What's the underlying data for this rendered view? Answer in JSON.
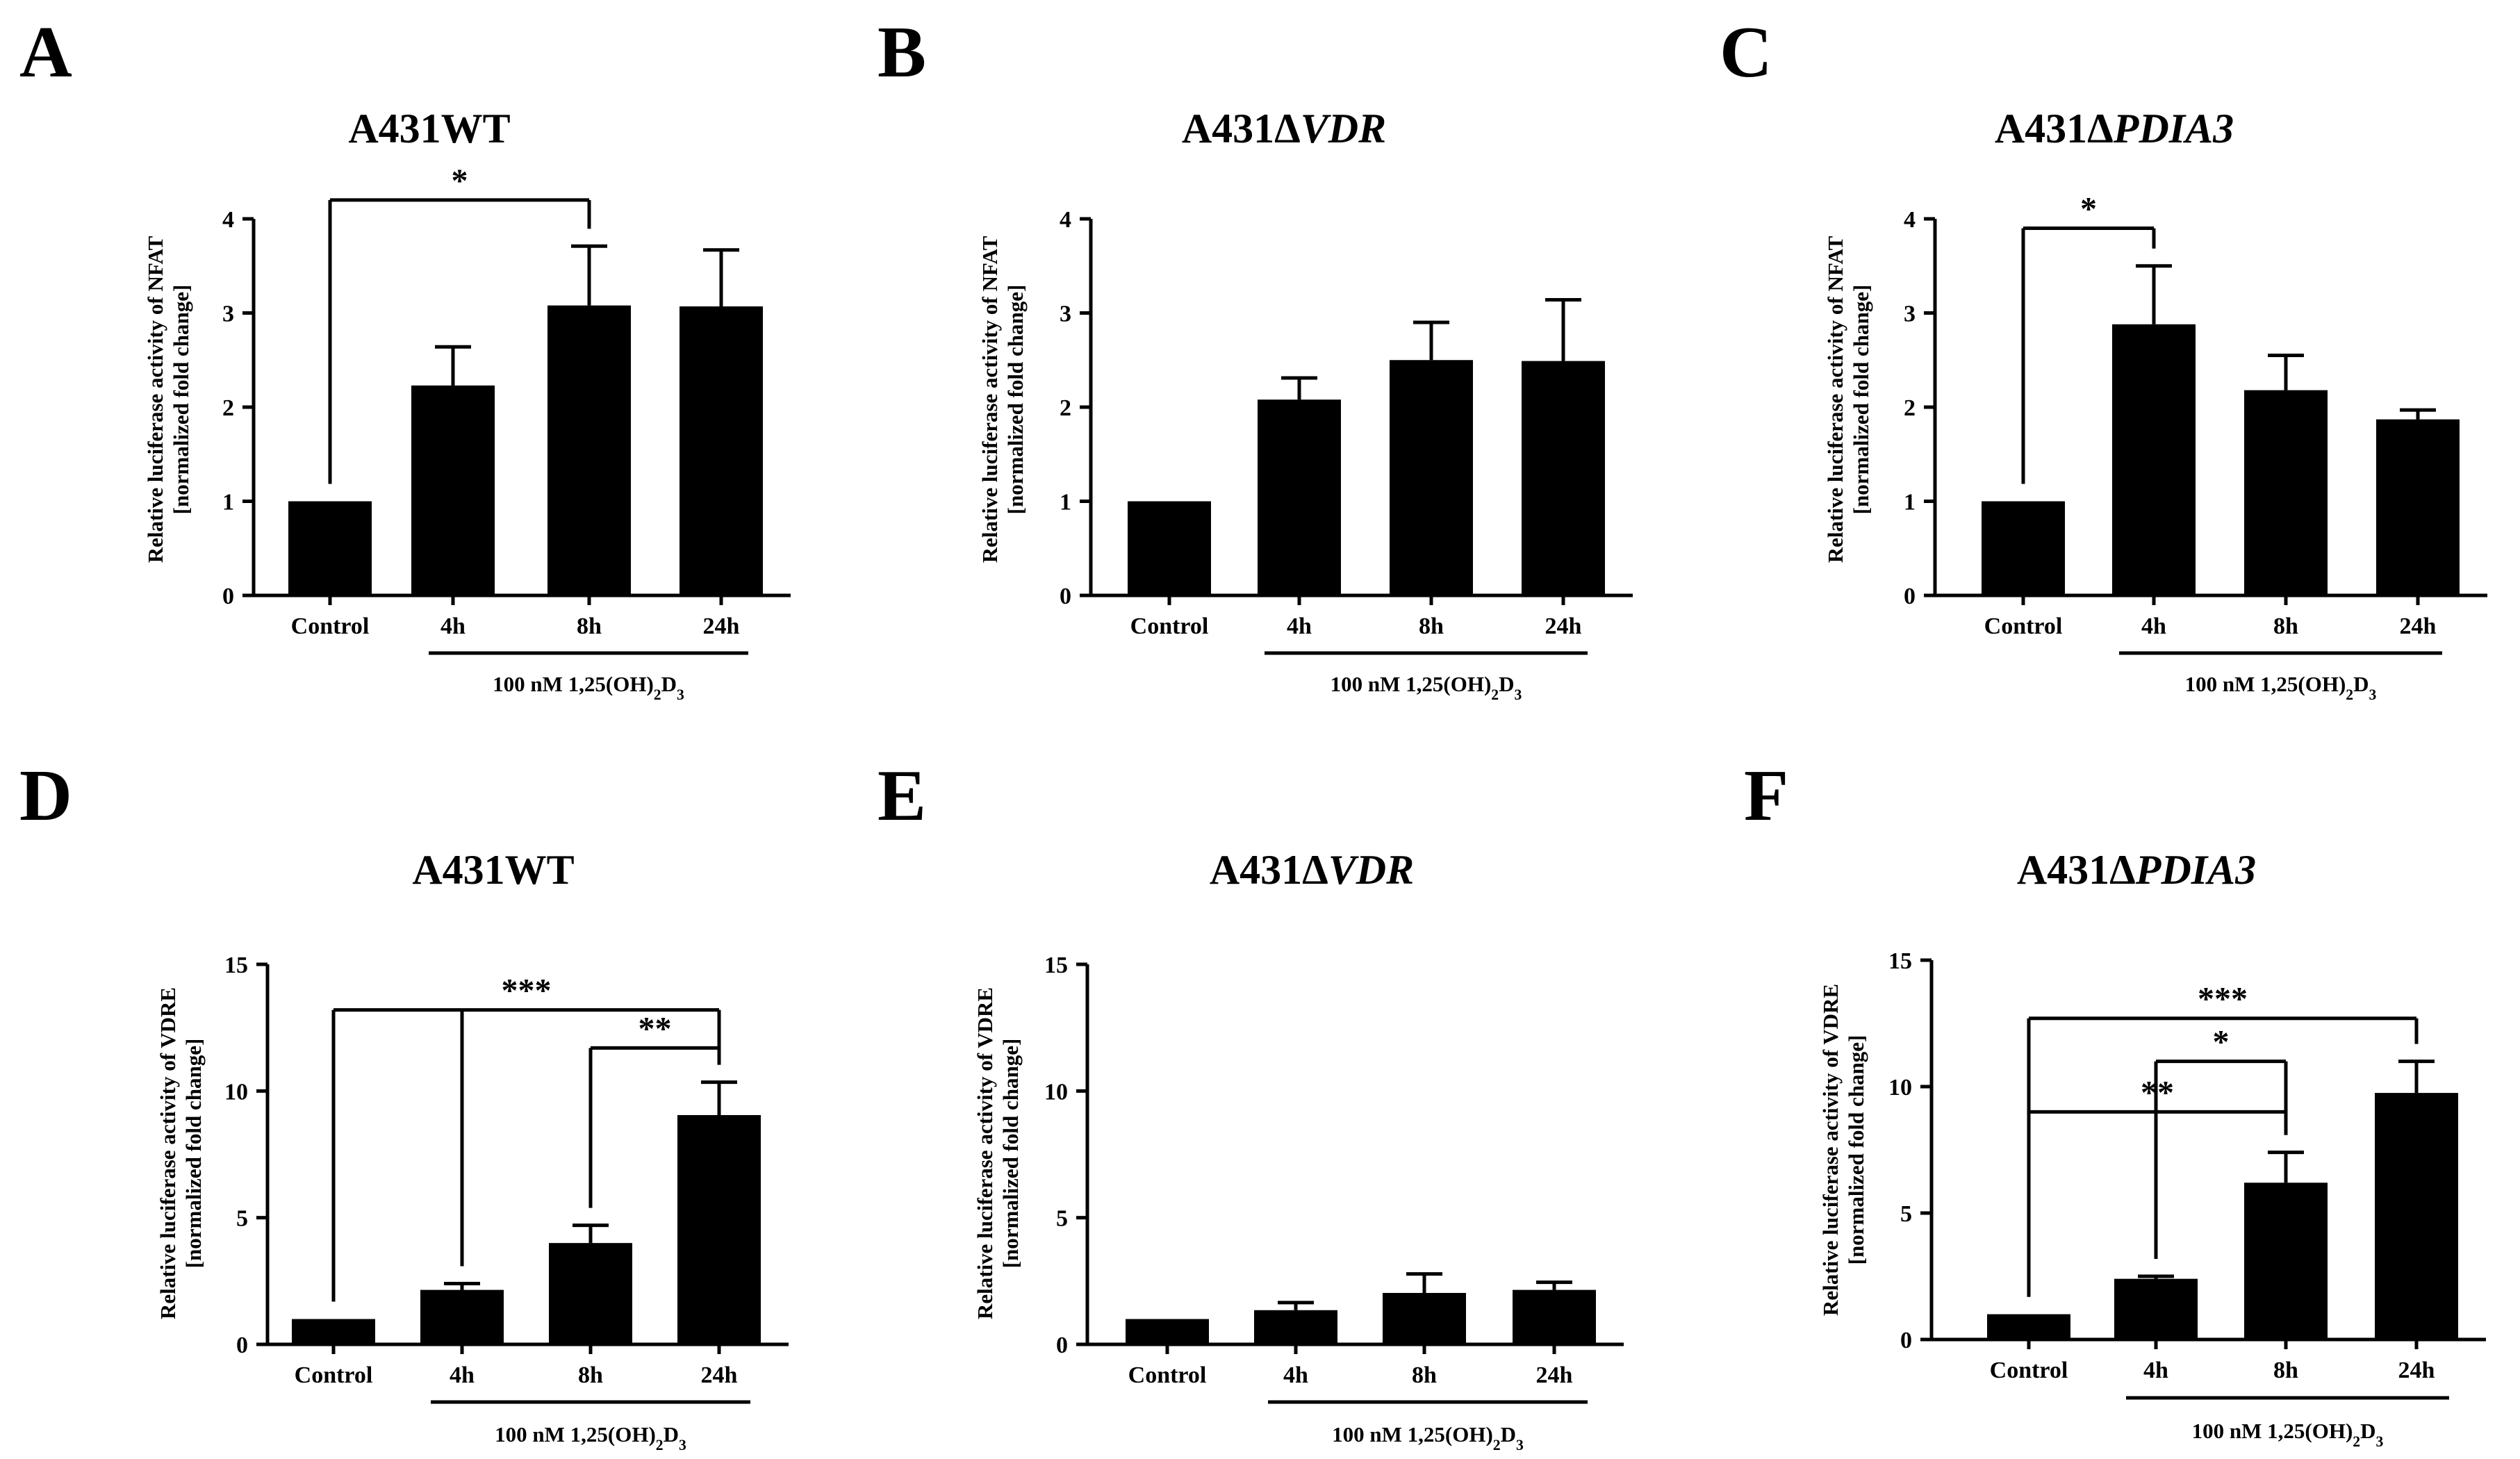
{
  "chart_data": [
    {
      "panel": "A",
      "type": "bar",
      "title": "A431WT",
      "title_parts": [
        {
          "t": "A431WT",
          "i": false
        }
      ],
      "categories": [
        "Control",
        "4h",
        "8h",
        "24h"
      ],
      "values": [
        1.0,
        2.23,
        3.08,
        3.07
      ],
      "errors": [
        0.0,
        0.41,
        0.63,
        0.6
      ],
      "ylabel": "Relative luciferase activity of NFAT",
      "ylabel2": "[normalized fold change]",
      "ylim": [
        0,
        4
      ],
      "yticks": [
        "0",
        "1",
        "2",
        "3",
        "4"
      ],
      "treatment_label": "100 nM 1,25(OH)₂D₃",
      "significance": [
        {
          "from": 0,
          "to": 2,
          "label": "*",
          "level": 4.2
        }
      ]
    },
    {
      "panel": "B",
      "type": "bar",
      "title": "A431ΔVDR",
      "title_parts": [
        {
          "t": "A431Δ",
          "i": false
        },
        {
          "t": "VDR",
          "i": true
        }
      ],
      "categories": [
        "Control",
        "4h",
        "8h",
        "24h"
      ],
      "values": [
        1.0,
        2.08,
        2.5,
        2.49
      ],
      "errors": [
        0.0,
        0.23,
        0.4,
        0.65
      ],
      "ylabel": "Relative luciferase activity of NFAT",
      "ylabel2": "[normalized fold change]",
      "ylim": [
        0,
        4
      ],
      "yticks": [
        "0",
        "1",
        "2",
        "3",
        "4"
      ],
      "treatment_label": "100 nM 1,25(OH)₂D₃",
      "significance": []
    },
    {
      "panel": "C",
      "type": "bar",
      "title": "A431ΔPDIA3",
      "title_parts": [
        {
          "t": "A431Δ",
          "i": false
        },
        {
          "t": "PDIA3",
          "i": true
        }
      ],
      "categories": [
        "Control",
        "4h",
        "8h",
        "24h"
      ],
      "values": [
        1.0,
        2.88,
        2.18,
        1.87
      ],
      "errors": [
        0.0,
        0.62,
        0.37,
        0.1
      ],
      "ylabel": "Relative luciferase activity of NFAT",
      "ylabel2": "[normalized fold change]",
      "ylim": [
        0,
        4
      ],
      "yticks": [
        "0",
        "1",
        "2",
        "3",
        "4"
      ],
      "treatment_label": "100 nM 1,25(OH)₂D₃",
      "significance": [
        {
          "from": 0,
          "to": 1,
          "label": "*",
          "level": 3.9
        }
      ]
    },
    {
      "panel": "D",
      "type": "bar",
      "title": "A431WT",
      "title_parts": [
        {
          "t": "A431WT",
          "i": false
        }
      ],
      "categories": [
        "Control",
        "4h",
        "8h",
        "24h"
      ],
      "values": [
        1.0,
        2.15,
        4.0,
        9.05
      ],
      "errors": [
        0.0,
        0.25,
        0.7,
        1.3
      ],
      "ylabel": "Relative luciferase activity of VDRE",
      "ylabel2": "[normalized fold change]",
      "ylim": [
        0,
        15
      ],
      "yticks": [
        "0",
        "5",
        "10",
        "15"
      ],
      "treatment_label": "100 nM 1,25(OH)₂D₃",
      "significance": [
        {
          "from": 0,
          "to": 3,
          "label": "***",
          "level": 13.2,
          "extra_drops": [
            1
          ]
        },
        {
          "from": 2,
          "to": 3,
          "label": "**",
          "level": 11.7
        }
      ]
    },
    {
      "panel": "E",
      "type": "bar",
      "title": "A431ΔVDR",
      "title_parts": [
        {
          "t": "A431Δ",
          "i": false
        },
        {
          "t": "VDR",
          "i": true
        }
      ],
      "categories": [
        "Control",
        "4h",
        "8h",
        "24h"
      ],
      "values": [
        1.0,
        1.35,
        2.03,
        2.15
      ],
      "errors": [
        0.0,
        0.3,
        0.75,
        0.3
      ],
      "ylabel": "Relative luciferase activity of VDRE",
      "ylabel2": "[normalized fold change]",
      "ylim": [
        0,
        15
      ],
      "yticks": [
        "0",
        "5",
        "10",
        "15"
      ],
      "treatment_label": "100 nM 1,25(OH)₂D₃",
      "significance": []
    },
    {
      "panel": "F",
      "type": "bar",
      "title": "A431ΔPDIA3",
      "title_parts": [
        {
          "t": "A431Δ",
          "i": false
        },
        {
          "t": "PDIA3",
          "i": true
        }
      ],
      "categories": [
        "Control",
        "4h",
        "8h",
        "24h"
      ],
      "values": [
        1.0,
        2.4,
        6.2,
        9.75
      ],
      "errors": [
        0.0,
        0.1,
        1.2,
        1.25
      ],
      "ylabel": "Relative luciferase activity of VDRE",
      "ylabel2": "[normalized fold change]",
      "ylim": [
        0,
        15
      ],
      "yticks": [
        "0",
        "5",
        "10",
        "15"
      ],
      "treatment_label": "100 nM 1,25(OH)₂D₃",
      "significance": [
        {
          "from": 0,
          "to": 3,
          "label": "***",
          "level": 12.7
        },
        {
          "from": 1,
          "to": 2,
          "label": "*",
          "level": 11.0
        },
        {
          "from": 0,
          "to": 2,
          "label": "**",
          "level": 9.0
        }
      ]
    }
  ]
}
